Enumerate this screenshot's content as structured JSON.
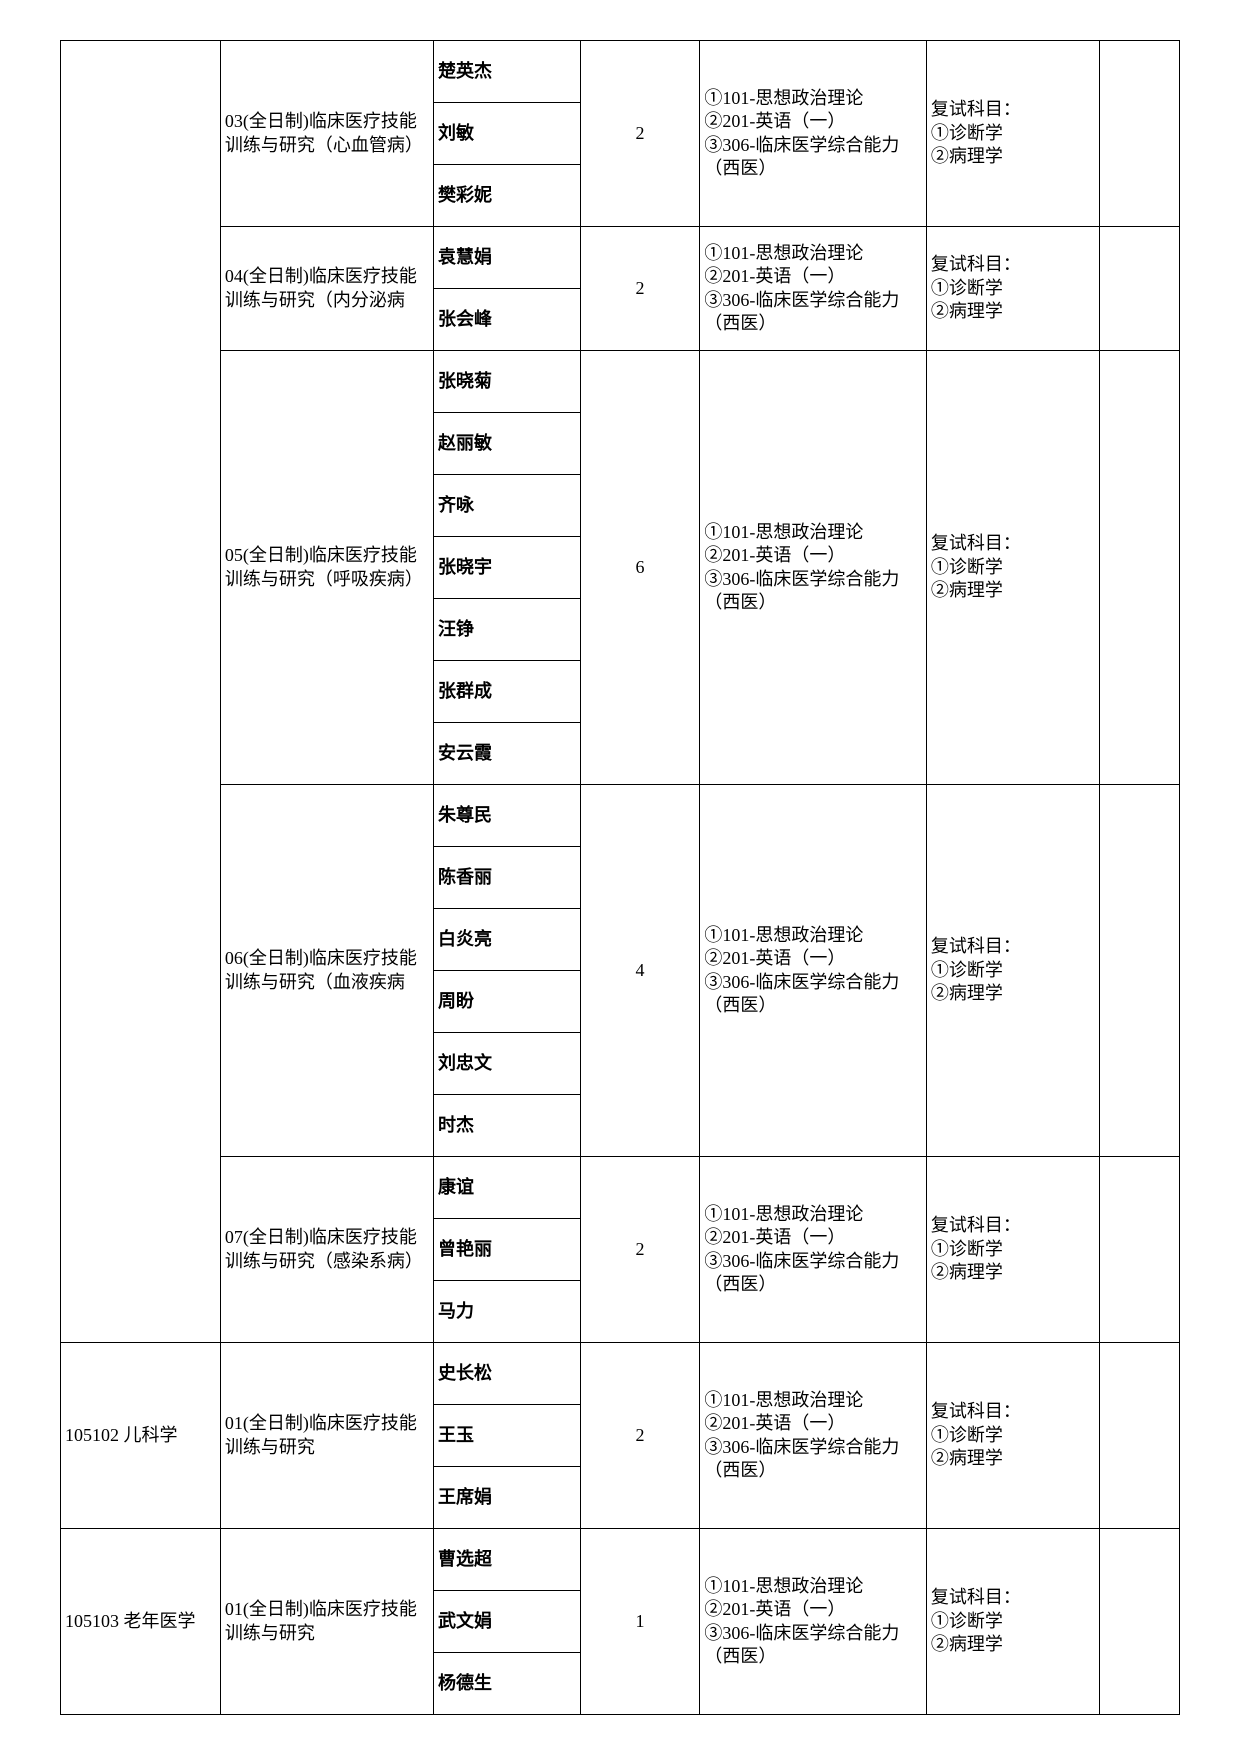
{
  "colors": {
    "border": "#000000",
    "background": "#ffffff",
    "text": "#000000"
  },
  "typography": {
    "base_fontsize": 18,
    "font_family": "SimSun",
    "advisor_weight": "bold"
  },
  "column_widths": {
    "code": 120,
    "direction": 160,
    "advisor": 110,
    "quota": 90,
    "initial": 170,
    "retest": 130,
    "last": 60
  },
  "exam_initial": "①101-思想政治理论\n②201-英语（一）\n③306-临床医学综合能力（西医）",
  "exam_retest": "复试科目：\n①诊断学\n②病理学",
  "groups": [
    {
      "code": "",
      "direction": "03(全日制)临床医疗技能训练与研究（心血管病）",
      "advisors": [
        "楚英杰",
        "刘敏",
        "樊彩妮"
      ],
      "quota": "2"
    },
    {
      "code": "",
      "direction": "04(全日制)临床医疗技能训练与研究（内分泌病",
      "advisors": [
        "袁慧娟",
        "张会峰"
      ],
      "quota": "2"
    },
    {
      "code": "",
      "direction": "05(全日制)临床医疗技能训练与研究（呼吸疾病）",
      "advisors": [
        "张晓菊",
        "赵丽敏",
        "齐咏",
        "张晓宇",
        "汪铮",
        "张群成",
        "安云霞"
      ],
      "quota": "6"
    },
    {
      "code": "",
      "direction": "06(全日制)临床医疗技能训练与研究（血液疾病",
      "advisors": [
        "朱尊民",
        "陈香丽",
        "白炎亮",
        "周盼",
        "刘忠文",
        "时杰"
      ],
      "quota": "4"
    },
    {
      "code": "",
      "direction": "07(全日制)临床医疗技能训练与研究（感染系病）",
      "advisors": [
        "康谊",
        "曾艳丽",
        "马力"
      ],
      "quota": "2"
    },
    {
      "code": "105102 儿科学",
      "direction": "01(全日制)临床医疗技能训练与研究",
      "advisors": [
        "史长松",
        "王玉",
        "王席娟"
      ],
      "quota": "2"
    },
    {
      "code": "105103 老年医学",
      "direction": "01(全日制)临床医疗技能训练与研究",
      "advisors": [
        "曹选超",
        "武文娟",
        "杨德生"
      ],
      "quota": "1"
    }
  ]
}
